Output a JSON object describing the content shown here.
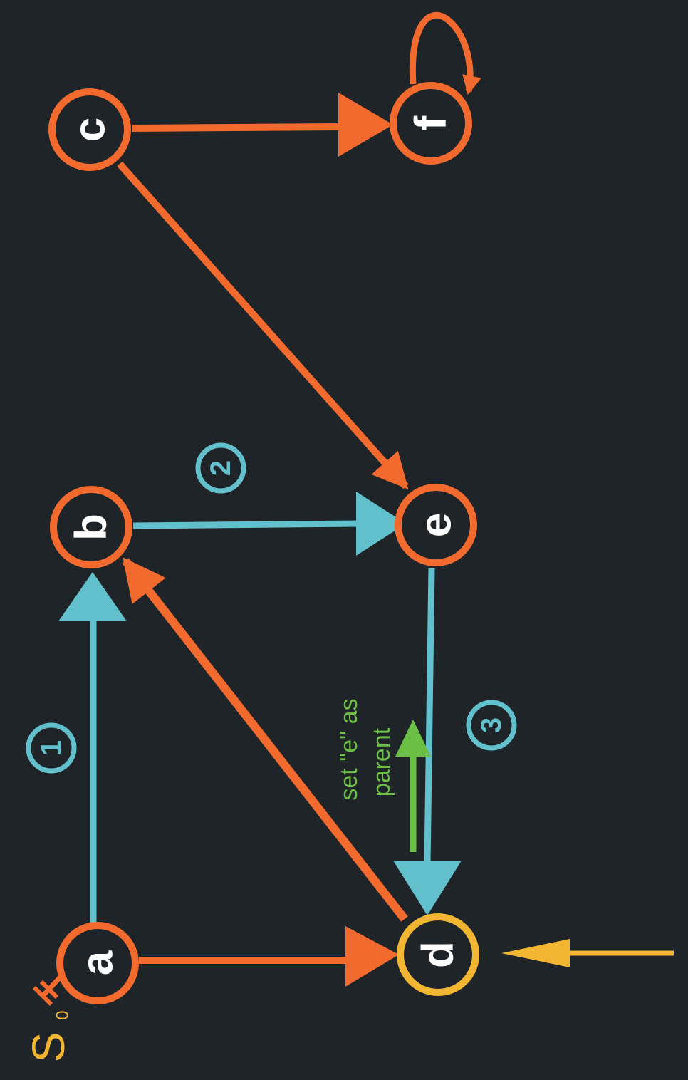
{
  "colors": {
    "background": "#1f2428",
    "node_border": "#f26a2e",
    "highlight": "#f2b632",
    "traversal": "#62c0cc",
    "parent_note": "#6cbf45",
    "label": "#ffffff"
  },
  "nodes": {
    "a": {
      "label": "a"
    },
    "b": {
      "label": "b"
    },
    "c": {
      "label": "c"
    },
    "d": {
      "label": "d"
    },
    "e": {
      "label": "e"
    },
    "f": {
      "label": "f"
    }
  },
  "start": {
    "label": "S",
    "subscript": "0"
  },
  "steps": {
    "one": "1",
    "two": "2",
    "three": "3"
  },
  "note": {
    "line1": "set \"e\" as",
    "line2": "parent"
  }
}
